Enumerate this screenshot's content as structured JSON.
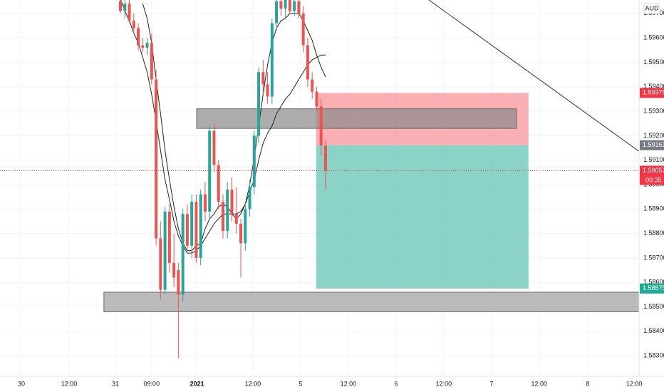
{
  "chart_data": {
    "type": "candlestick",
    "currency": "AUD",
    "up_color": "#26a69a",
    "down_color": "#ef5350",
    "grid": true,
    "xlim": [
      0,
      143.3
    ],
    "xticks": [
      {
        "value": 4.8,
        "label": "30"
      },
      {
        "value": 15.5,
        "label": "12:00"
      },
      {
        "value": 25.9,
        "label": "31"
      },
      {
        "value": 34.0,
        "label": "09:00"
      },
      {
        "value": 44.2,
        "label": "2021",
        "bold": true
      },
      {
        "value": 56.7,
        "label": "12:00"
      },
      {
        "value": 67.4,
        "label": "5"
      },
      {
        "value": 78.1,
        "label": "12:00"
      },
      {
        "value": 88.8,
        "label": "6"
      },
      {
        "value": 99.5,
        "label": "12:00"
      },
      {
        "value": 110.2,
        "label": "7"
      },
      {
        "value": 120.9,
        "label": "12:00"
      },
      {
        "value": 131.8,
        "label": "8"
      },
      {
        "value": 142.2,
        "label": "12:00"
      }
    ],
    "ylim": [
      1.58216,
      1.59755
    ],
    "yticks": [
      {
        "value": 1.583,
        "label": "1.58300"
      },
      {
        "value": 1.584,
        "label": "1.58400"
      },
      {
        "value": 1.585,
        "label": "1.58500"
      },
      {
        "value": 1.586,
        "label": "1.58600"
      },
      {
        "value": 1.587,
        "label": "1.58700"
      },
      {
        "value": 1.588,
        "label": "1.58800"
      },
      {
        "value": 1.589,
        "label": "1.58900"
      },
      {
        "value": 1.59,
        "label": "1.59000"
      },
      {
        "value": 1.591,
        "label": "1.59100"
      },
      {
        "value": 1.592,
        "label": "1.59200"
      },
      {
        "value": 1.593,
        "label": "1.59300"
      },
      {
        "value": 1.594,
        "label": "1.59400"
      },
      {
        "value": 1.595,
        "label": "1.59500"
      },
      {
        "value": 1.596,
        "label": "1.59600"
      },
      {
        "value": 1.597,
        "label": "1.59700"
      }
    ],
    "x": [
      27,
      28,
      29,
      30,
      31,
      32,
      33,
      34,
      35,
      36,
      37,
      38,
      39,
      40,
      41,
      42,
      43,
      44,
      45,
      46,
      47,
      48,
      49,
      50,
      51,
      52,
      53,
      54,
      55,
      56,
      57,
      58,
      59,
      60,
      61,
      62,
      63,
      64,
      65,
      66,
      67,
      68,
      69,
      70,
      71,
      72,
      73
    ],
    "open": [
      1.5975,
      1.5971,
      1.5974,
      1.5967,
      1.5964,
      1.5957,
      1.5956,
      1.5958,
      1.5943,
      1.5878,
      1.5857,
      1.5889,
      1.5868,
      1.5865,
      1.5855,
      1.5888,
      1.5875,
      1.5893,
      1.587,
      1.5896,
      1.5889,
      1.5922,
      1.5908,
      1.5893,
      1.5881,
      1.5898,
      1.5888,
      1.5884,
      1.5876,
      1.589,
      1.5899,
      1.592,
      1.5946,
      1.5941,
      1.5936,
      1.5966,
      1.5975,
      1.5972,
      1.5976,
      1.5971,
      1.5975,
      1.597,
      1.5957,
      1.5943,
      1.5938,
      1.5932,
      1.5916
    ],
    "high": [
      1.5978,
      1.5976,
      1.5976,
      1.597,
      1.5966,
      1.596,
      1.596,
      1.5962,
      1.5947,
      1.5885,
      1.5891,
      1.5892,
      1.588,
      1.5868,
      1.589,
      1.5892,
      1.5896,
      1.5896,
      1.5898,
      1.5901,
      1.5924,
      1.5925,
      1.591,
      1.5896,
      1.5901,
      1.5903,
      1.5899,
      1.5886,
      1.5893,
      1.5902,
      1.5922,
      1.5948,
      1.5951,
      1.5946,
      1.5968,
      1.5978,
      1.5978,
      1.5978,
      1.5978,
      1.5977,
      1.5977,
      1.5973,
      1.596,
      1.5946,
      1.594,
      1.5935,
      1.5918
    ],
    "low": [
      1.597,
      1.5968,
      1.5966,
      1.5962,
      1.5955,
      1.5954,
      1.5953,
      1.5941,
      1.5875,
      1.5853,
      1.5855,
      1.5864,
      1.5858,
      1.5829,
      1.5852,
      1.5872,
      1.587,
      1.5868,
      1.5867,
      1.5885,
      1.5886,
      1.5905,
      1.589,
      1.5878,
      1.5878,
      1.5885,
      1.588,
      1.5862,
      1.5873,
      1.5887,
      1.5896,
      1.5917,
      1.5937,
      1.5933,
      1.5933,
      1.5963,
      1.5969,
      1.5968,
      1.597,
      1.5969,
      1.5968,
      1.5954,
      1.594,
      1.5935,
      1.593,
      1.5912,
      1.5898
    ],
    "close": [
      1.5971,
      1.5974,
      1.5967,
      1.5964,
      1.5957,
      1.5956,
      1.5958,
      1.5943,
      1.5878,
      1.5857,
      1.5889,
      1.5868,
      1.5862,
      1.5855,
      1.5888,
      1.5875,
      1.5893,
      1.587,
      1.5896,
      1.5889,
      1.5922,
      1.5908,
      1.5893,
      1.5881,
      1.5898,
      1.5888,
      1.5884,
      1.5876,
      1.589,
      1.5899,
      1.592,
      1.5946,
      1.5941,
      1.5936,
      1.5966,
      1.5975,
      1.5972,
      1.5976,
      1.5971,
      1.5975,
      1.597,
      1.5957,
      1.5943,
      1.5938,
      1.5932,
      1.5916,
      1.59057
    ],
    "moving_averages": [
      {
        "color": "#222222",
        "values": [
          null,
          null,
          null,
          null,
          null,
          1.5974,
          1.5968,
          1.5958,
          1.5943,
          1.5929,
          1.5914,
          1.5902,
          1.5891,
          1.5882,
          1.5876,
          1.5873,
          1.5873,
          1.5875,
          1.5876,
          1.5882,
          1.5886,
          1.5888,
          1.5891,
          1.5892,
          1.5891,
          1.5888,
          1.5886,
          1.5888,
          1.5892,
          1.59,
          1.5911,
          1.5924,
          1.5937,
          1.5949,
          1.5958,
          1.5964,
          1.5967,
          1.5968,
          1.597,
          1.597,
          1.597,
          1.5967,
          1.5963,
          1.5959,
          1.5953,
          1.5948,
          1.5944
        ]
      },
      {
        "color": "#222222",
        "values": [
          1.5976,
          1.5971,
          1.5967,
          1.5962,
          1.5958,
          1.5952,
          1.5946,
          1.5937,
          1.5926,
          1.5914,
          1.5902,
          1.5894,
          1.5885,
          1.5879,
          1.5875,
          1.5872,
          1.5872,
          1.5873,
          1.5875,
          1.5878,
          1.5881,
          1.5884,
          1.5886,
          1.5888,
          1.5888,
          1.5888,
          1.5888,
          1.5889,
          1.5892,
          1.5897,
          1.5902,
          1.591,
          1.5917,
          1.5921,
          1.5924,
          1.5929,
          1.5932,
          1.5935,
          1.5937,
          1.594,
          1.5943,
          1.5946,
          1.5949,
          1.5951,
          1.5952,
          1.5953,
          1.5953
        ]
      }
    ],
    "zones": [
      {
        "x": [
          44.1,
          115.8
        ],
        "y": [
          1.5923,
          1.5931
        ],
        "color": "#8a8a8a"
      },
      {
        "x": [
          23.3,
          143.3
        ],
        "y": [
          1.5848,
          1.5856
        ],
        "color": "#9e9e9e"
      }
    ],
    "position": {
      "x": [
        70.9,
        118.5
      ],
      "stop": 1.59375,
      "entry": 1.59161,
      "target": 1.58575,
      "stop_color": "#f77c80",
      "target_color": "#22ab94",
      "entry_color": "#787b86"
    },
    "trend_line": {
      "x": [
        95.8,
        143.3
      ],
      "y": [
        1.5976,
        1.59136
      ],
      "color": "#333333"
    },
    "last_price": 1.59057,
    "last_price_color": "#f23645",
    "countdown": "00:35"
  }
}
